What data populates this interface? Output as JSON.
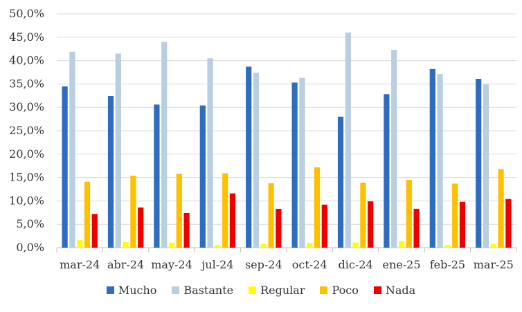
{
  "chart_data": {
    "type": "bar",
    "categories": [
      "mar-24",
      "abr-24",
      "may-24",
      "jul-24",
      "sep-24",
      "oct-24",
      "dic-24",
      "ene-25",
      "feb-25",
      "mar-25"
    ],
    "series": [
      {
        "name": "Mucho",
        "color": "#2e6cc0",
        "values": [
          34.5,
          32.4,
          30.6,
          30.4,
          38.7,
          35.3,
          28.0,
          32.8,
          38.2,
          36.1
        ]
      },
      {
        "name": "Bastante",
        "color": "#b9cde3",
        "values": [
          41.9,
          41.5,
          44.0,
          40.5,
          37.4,
          36.3,
          46.0,
          42.3,
          37.1,
          34.9
        ]
      },
      {
        "name": "Regular",
        "color": "#ffff00",
        "values": [
          1.6,
          1.2,
          1.1,
          0.6,
          0.8,
          1.0,
          1.1,
          1.4,
          0.6,
          0.8
        ]
      },
      {
        "name": "Poco",
        "color": "#ffc000",
        "values": [
          14.1,
          15.4,
          15.8,
          15.9,
          13.8,
          17.2,
          13.9,
          14.5,
          13.7,
          16.8
        ]
      },
      {
        "name": "Nada",
        "color": "#ee0000",
        "values": [
          7.2,
          8.6,
          7.4,
          11.6,
          8.3,
          9.2,
          9.9,
          8.3,
          9.8,
          10.4
        ]
      }
    ],
    "ylim": [
      0,
      50
    ],
    "yticks": [
      "0,0%",
      "5,0%",
      "10,0%",
      "15,0%",
      "20,0%",
      "25,0%",
      "30,0%",
      "35,0%",
      "40,0%",
      "45,0%",
      "50,0%"
    ],
    "ytick_values": [
      0,
      5,
      10,
      15,
      20,
      25,
      30,
      35,
      40,
      45,
      50
    ],
    "grid": true,
    "legend_position": "bottom",
    "title": "",
    "xlabel": "",
    "ylabel": ""
  }
}
